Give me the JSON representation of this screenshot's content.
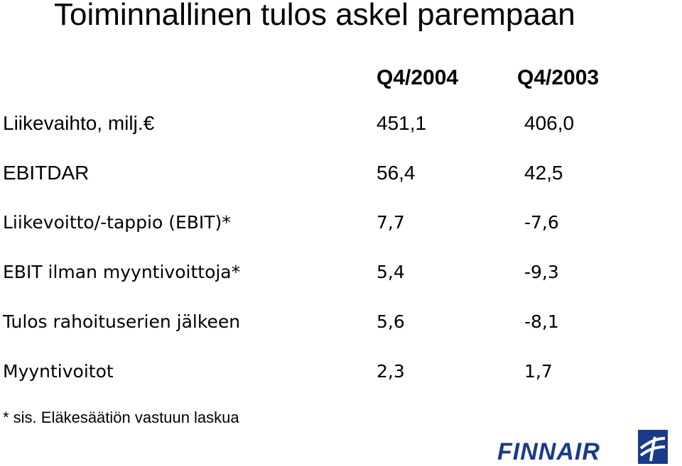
{
  "title": "Toiminnallinen tulos askel parempaan",
  "columns": [
    "Q4/2004",
    "Q4/2003"
  ],
  "rows": [
    {
      "label": "Liikevaihto, milj.€",
      "q4_2004": "451,1",
      "q4_2003": "406,0"
    },
    {
      "label": "EBITDAR",
      "q4_2004": "56,4",
      "q4_2003": "42,5"
    },
    {
      "label": "Liikevoitto/-tappio (EBIT)*",
      "q4_2004": "7,7",
      "q4_2003": "-7,6"
    },
    {
      "label": "EBIT ilman myyntivoittoja*",
      "q4_2004": "5,4",
      "q4_2003": "-9,3"
    },
    {
      "label": "Tulos rahoituserien jälkeen",
      "q4_2004": "5,6",
      "q4_2003": "-8,1"
    },
    {
      "label": "Myyntivoitot",
      "q4_2004": "2,3",
      "q4_2003": "1,7"
    }
  ],
  "footnote": "* sis. Eläkesäätiön vastuun laskua",
  "logo": {
    "text": "FINNAIR",
    "color": "#1a3a8a",
    "icon": "finnair-f-mark-icon"
  }
}
